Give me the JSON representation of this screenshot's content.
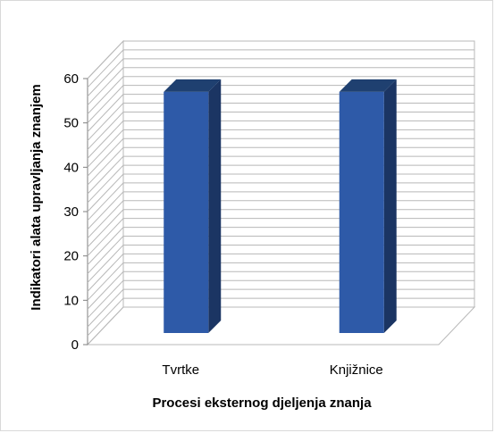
{
  "chart_data": {
    "type": "bar",
    "categories": [
      "Tvrtke",
      "Knjižnice"
    ],
    "values": [
      57,
      57
    ],
    "xlabel": "Procesi eksternog djeljenja znanja",
    "ylabel": "Indikatori alata upravljanja znanjem",
    "ylim": [
      0,
      60
    ],
    "yticks": [
      0,
      10,
      20,
      30,
      40,
      50,
      60
    ],
    "minor_grid_step": 2,
    "grid": true,
    "legend": "none",
    "style": "3d-column",
    "colors": {
      "bar_front": "#2e5aa8",
      "bar_side": "#1b3563",
      "bar_top": "#1f4070",
      "grid": "#b8b8b8",
      "axis": "#7f7f7f"
    }
  }
}
